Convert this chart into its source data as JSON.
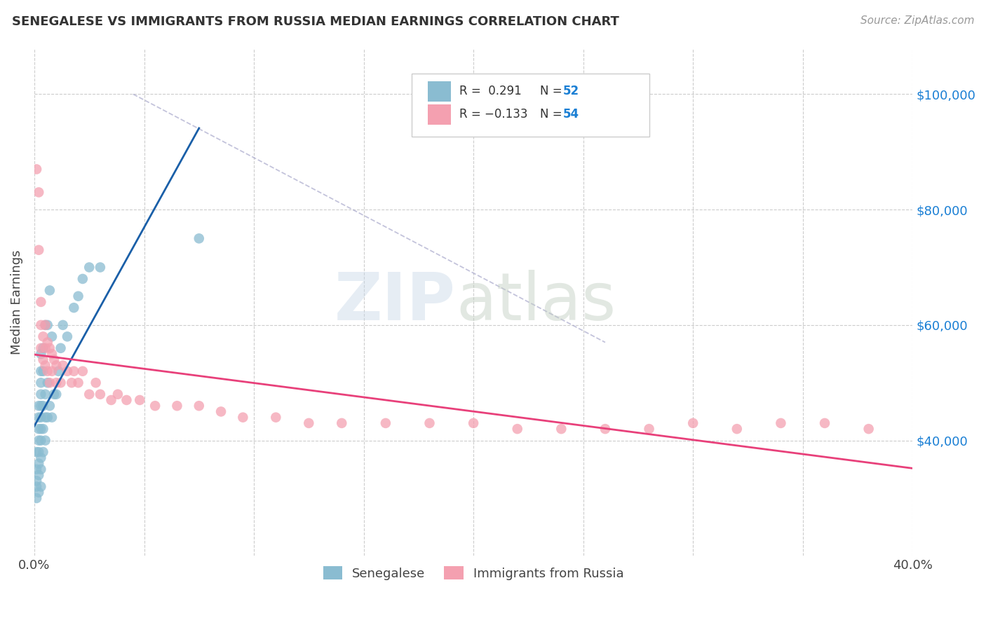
{
  "title": "SENEGALESE VS IMMIGRANTS FROM RUSSIA MEDIAN EARNINGS CORRELATION CHART",
  "source_text": "Source: ZipAtlas.com",
  "ylabel": "Median Earnings",
  "xlim": [
    0.0,
    0.4
  ],
  "ylim": [
    20000,
    108000
  ],
  "x_ticks": [
    0.0,
    0.05,
    0.1,
    0.15,
    0.2,
    0.25,
    0.3,
    0.35,
    0.4
  ],
  "y_ticks": [
    40000,
    60000,
    80000,
    100000
  ],
  "y_tick_labels": [
    "$40,000",
    "$60,000",
    "$80,000",
    "$100,000"
  ],
  "blue_color": "#8abcd1",
  "pink_color": "#f4a0b0",
  "blue_line_color": "#1a5fa8",
  "pink_line_color": "#e8407a",
  "blue_scatter": {
    "x": [
      0.001,
      0.001,
      0.001,
      0.001,
      0.001,
      0.002,
      0.002,
      0.002,
      0.002,
      0.002,
      0.002,
      0.002,
      0.002,
      0.003,
      0.003,
      0.003,
      0.003,
      0.003,
      0.003,
      0.003,
      0.003,
      0.003,
      0.003,
      0.003,
      0.004,
      0.004,
      0.004,
      0.004,
      0.004,
      0.005,
      0.005,
      0.005,
      0.005,
      0.006,
      0.006,
      0.006,
      0.007,
      0.007,
      0.008,
      0.008,
      0.009,
      0.01,
      0.011,
      0.012,
      0.013,
      0.015,
      0.018,
      0.02,
      0.022,
      0.025,
      0.03,
      0.075
    ],
    "y": [
      30000,
      32000,
      33000,
      35000,
      38000,
      31000,
      34000,
      36000,
      38000,
      40000,
      42000,
      44000,
      46000,
      32000,
      35000,
      37000,
      40000,
      42000,
      44000,
      46000,
      48000,
      50000,
      52000,
      55000,
      38000,
      42000,
      46000,
      52000,
      56000,
      40000,
      44000,
      48000,
      60000,
      44000,
      50000,
      60000,
      46000,
      66000,
      44000,
      58000,
      48000,
      48000,
      52000,
      56000,
      60000,
      58000,
      63000,
      65000,
      68000,
      70000,
      70000,
      75000
    ]
  },
  "pink_scatter": {
    "x": [
      0.001,
      0.002,
      0.002,
      0.003,
      0.003,
      0.003,
      0.004,
      0.004,
      0.005,
      0.005,
      0.005,
      0.006,
      0.006,
      0.007,
      0.007,
      0.008,
      0.008,
      0.009,
      0.01,
      0.01,
      0.012,
      0.013,
      0.015,
      0.017,
      0.018,
      0.02,
      0.022,
      0.025,
      0.028,
      0.03,
      0.035,
      0.038,
      0.042,
      0.048,
      0.055,
      0.065,
      0.075,
      0.085,
      0.095,
      0.11,
      0.125,
      0.14,
      0.16,
      0.18,
      0.2,
      0.22,
      0.24,
      0.26,
      0.28,
      0.3,
      0.32,
      0.34,
      0.36,
      0.38
    ],
    "y": [
      87000,
      73000,
      83000,
      56000,
      60000,
      64000,
      54000,
      58000,
      53000,
      56000,
      60000,
      52000,
      57000,
      50000,
      56000,
      52000,
      55000,
      54000,
      50000,
      53000,
      50000,
      53000,
      52000,
      50000,
      52000,
      50000,
      52000,
      48000,
      50000,
      48000,
      47000,
      48000,
      47000,
      47000,
      46000,
      46000,
      46000,
      45000,
      44000,
      44000,
      43000,
      43000,
      43000,
      43000,
      43000,
      42000,
      42000,
      42000,
      42000,
      43000,
      42000,
      43000,
      43000,
      42000
    ]
  },
  "dashed_line": {
    "x": [
      0.045,
      0.26
    ],
    "y": [
      100000,
      57000
    ]
  }
}
